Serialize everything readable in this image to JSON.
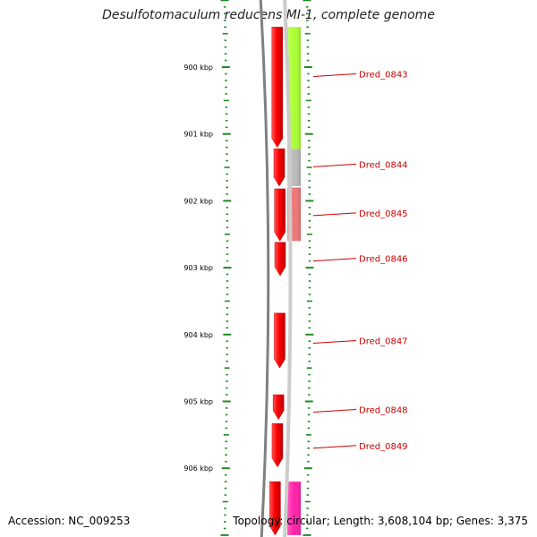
{
  "title": "Desulfotomaculum reducens MI-1, complete genome",
  "footer": {
    "accession_label": "Accession:",
    "accession": "NC_009253",
    "topology_label": "Topology:",
    "topology": "circular;",
    "length_label": "Length:",
    "length": "3,608,104 bp;",
    "genes_label": "Genes:",
    "genes": "3,375"
  },
  "scale": {
    "unit": "kbp",
    "major_ticks": [
      {
        "kbp": 900,
        "label": "900 kbp"
      },
      {
        "kbp": 901,
        "label": "901 kbp"
      },
      {
        "kbp": 902,
        "label": "902 kbp"
      },
      {
        "kbp": 903,
        "label": "903 kbp"
      },
      {
        "kbp": 904,
        "label": "904 kbp"
      },
      {
        "kbp": 905,
        "label": "905 kbp"
      },
      {
        "kbp": 906,
        "label": "906 kbp"
      }
    ]
  },
  "genes": [
    {
      "name": "Dred_0843",
      "start_kbp": 899.4,
      "end_kbp": 901.2
    },
    {
      "name": "Dred_0844",
      "start_kbp": 901.22,
      "end_kbp": 901.78
    },
    {
      "name": "Dred_0845",
      "start_kbp": 901.82,
      "end_kbp": 902.6
    },
    {
      "name": "Dred_0846",
      "start_kbp": 902.62,
      "end_kbp": 903.12
    },
    {
      "name": "Dred_0847",
      "start_kbp": 903.68,
      "end_kbp": 904.5
    },
    {
      "name": "Dred_0848",
      "start_kbp": 904.9,
      "end_kbp": 905.27
    },
    {
      "name": "Dred_0849",
      "start_kbp": 905.33,
      "end_kbp": 905.98
    },
    {
      "name": "",
      "start_kbp": 906.2,
      "end_kbp": 907.0
    }
  ],
  "labels": [
    {
      "text": "Dred_0843",
      "kbp": 900.1
    },
    {
      "text": "Dred_0844",
      "kbp": 901.45
    },
    {
      "text": "Dred_0845",
      "kbp": 902.18
    },
    {
      "text": "Dred_0846",
      "kbp": 902.86
    },
    {
      "text": "Dred_0847",
      "kbp": 904.09
    },
    {
      "text": "Dred_0848",
      "kbp": 905.12
    },
    {
      "text": "Dred_0849",
      "kbp": 905.66
    }
  ],
  "cog_blocks": [
    {
      "start_kbp": 899.4,
      "end_kbp": 901.22,
      "color": "#aaff33"
    },
    {
      "start_kbp": 901.22,
      "end_kbp": 901.78,
      "color": "#bbbbbb"
    },
    {
      "start_kbp": 901.8,
      "end_kbp": 902.6,
      "color": "#ee7777"
    },
    {
      "start_kbp": 906.2,
      "end_kbp": 907.0,
      "color": "#ff22aa"
    }
  ],
  "colors": {
    "gene": "#ff0000",
    "label": "#cc0000",
    "tick": "#228822",
    "backbone": "#808080"
  }
}
